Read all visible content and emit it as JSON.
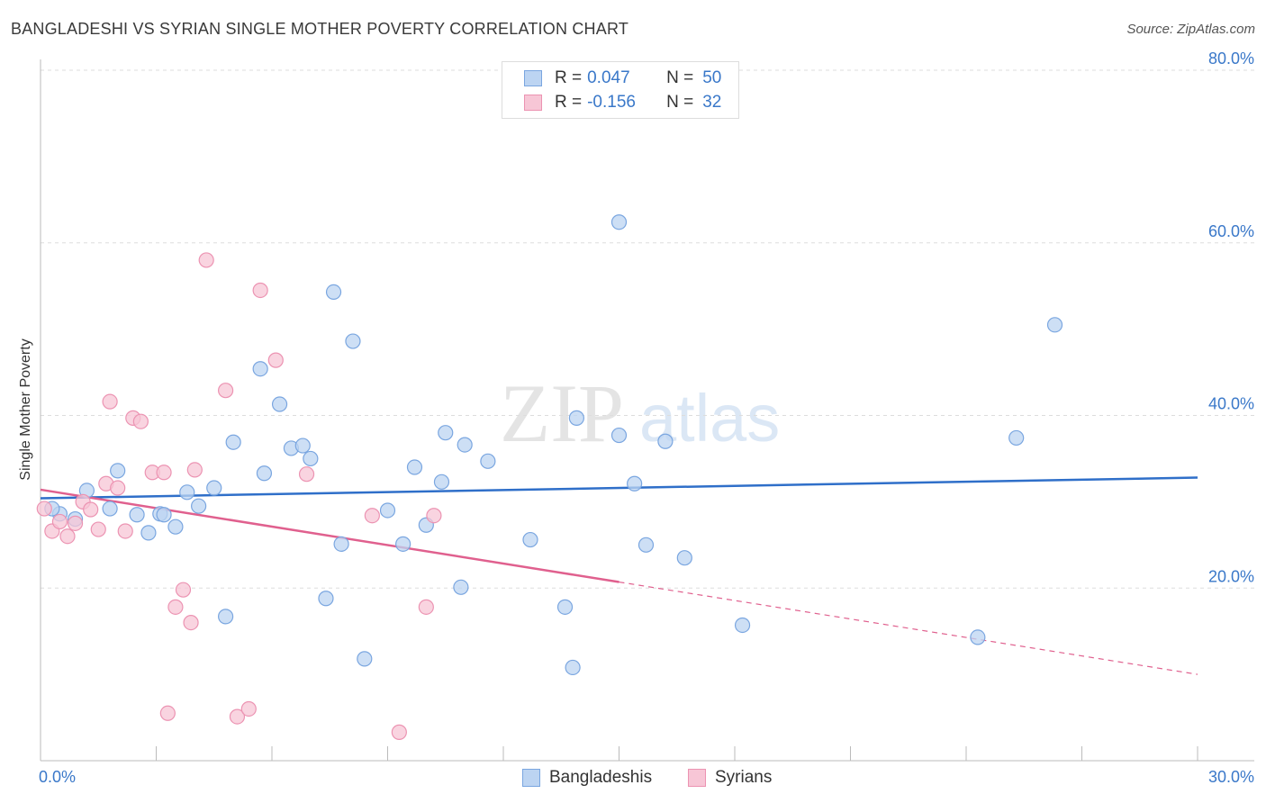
{
  "header": {
    "title": "BANGLADESHI VS SYRIAN SINGLE MOTHER POVERTY CORRELATION CHART",
    "source": "Source: ZipAtlas.com"
  },
  "legend": {
    "rows": [
      {
        "r_label": "R =",
        "r_value": "0.047",
        "n_label": "N =",
        "n_value": "50"
      },
      {
        "r_label": "R =",
        "r_value": "-0.156",
        "n_label": "N =",
        "n_value": "32"
      }
    ]
  },
  "watermark": {
    "zip": "ZIP",
    "atlas": "atlas"
  },
  "bottom_legend": {
    "bangladeshis": "Bangladeshis",
    "syrians": "Syrians"
  },
  "colors": {
    "blue_fill": "#bcd4f2",
    "blue_stroke": "#7aa6e0",
    "blue_line": "#2f6fc9",
    "pink_fill": "#f7c6d6",
    "pink_stroke": "#ec93b2",
    "pink_line": "#e0608e",
    "axis_text": "#3a78c9",
    "grid": "#dddddd"
  },
  "chart_data": {
    "type": "scatter",
    "title": "BANGLADESHI VS SYRIAN SINGLE MOTHER POVERTY CORRELATION CHART",
    "xlabel": "",
    "ylabel": "Single Mother Poverty",
    "xlim": [
      0,
      30
    ],
    "ylim": [
      0,
      80
    ],
    "x_tick_labels": [
      "0.0%",
      "30.0%"
    ],
    "y_ticks": [
      20,
      40,
      60,
      80
    ],
    "y_tick_labels": [
      "20.0%",
      "40.0%",
      "60.0%",
      "80.0%"
    ],
    "grid": true,
    "legend_position": "top-center",
    "series": [
      {
        "name": "Bangladeshis",
        "r": 0.047,
        "n": 50,
        "trend": {
          "x": [
            0,
            30
          ],
          "y": [
            30.4,
            32.8
          ],
          "dashed_from": null
        },
        "points": [
          [
            0.5,
            28.6
          ],
          [
            0.9,
            28.0
          ],
          [
            1.2,
            31.3
          ],
          [
            1.8,
            29.2
          ],
          [
            2.0,
            33.6
          ],
          [
            2.5,
            28.5
          ],
          [
            2.8,
            26.4
          ],
          [
            3.1,
            28.6
          ],
          [
            3.5,
            27.1
          ],
          [
            3.8,
            31.1
          ],
          [
            4.1,
            29.5
          ],
          [
            4.5,
            31.6
          ],
          [
            4.8,
            16.7
          ],
          [
            5.0,
            36.9
          ],
          [
            5.7,
            45.4
          ],
          [
            5.8,
            33.3
          ],
          [
            6.2,
            41.3
          ],
          [
            6.5,
            36.2
          ],
          [
            6.8,
            36.5
          ],
          [
            7.0,
            35.0
          ],
          [
            7.4,
            18.8
          ],
          [
            7.6,
            54.3
          ],
          [
            7.8,
            25.1
          ],
          [
            8.1,
            48.6
          ],
          [
            8.4,
            11.8
          ],
          [
            9.0,
            29.0
          ],
          [
            9.4,
            25.1
          ],
          [
            9.7,
            34.0
          ],
          [
            10.0,
            27.3
          ],
          [
            10.4,
            32.3
          ],
          [
            10.5,
            38.0
          ],
          [
            10.9,
            20.1
          ],
          [
            11.0,
            36.6
          ],
          [
            11.6,
            34.7
          ],
          [
            12.7,
            25.6
          ],
          [
            13.6,
            17.8
          ],
          [
            13.8,
            10.8
          ],
          [
            13.9,
            39.7
          ],
          [
            15.0,
            62.4
          ],
          [
            15.0,
            37.7
          ],
          [
            15.4,
            32.1
          ],
          [
            15.7,
            25.0
          ],
          [
            16.2,
            37.0
          ],
          [
            16.7,
            23.5
          ],
          [
            18.2,
            15.7
          ],
          [
            24.3,
            14.3
          ],
          [
            25.3,
            37.4
          ],
          [
            26.3,
            50.5
          ],
          [
            0.3,
            29.2
          ],
          [
            3.2,
            28.5
          ]
        ]
      },
      {
        "name": "Syrians",
        "r": -0.156,
        "n": 32,
        "trend": {
          "x": [
            0,
            30
          ],
          "y": [
            31.4,
            10.0
          ],
          "dashed_from": 15.0
        },
        "points": [
          [
            0.1,
            29.2
          ],
          [
            0.3,
            26.6
          ],
          [
            0.5,
            27.7
          ],
          [
            0.7,
            26.0
          ],
          [
            0.9,
            27.5
          ],
          [
            1.1,
            30.0
          ],
          [
            1.3,
            29.1
          ],
          [
            1.5,
            26.8
          ],
          [
            1.7,
            32.1
          ],
          [
            1.8,
            41.6
          ],
          [
            2.0,
            31.6
          ],
          [
            2.2,
            26.6
          ],
          [
            2.4,
            39.7
          ],
          [
            2.6,
            39.3
          ],
          [
            2.9,
            33.4
          ],
          [
            3.2,
            33.4
          ],
          [
            3.3,
            5.5
          ],
          [
            3.5,
            17.8
          ],
          [
            3.7,
            19.8
          ],
          [
            3.9,
            16.0
          ],
          [
            4.0,
            33.7
          ],
          [
            4.3,
            58.0
          ],
          [
            4.8,
            42.9
          ],
          [
            5.1,
            5.1
          ],
          [
            5.4,
            6.0
          ],
          [
            5.7,
            54.5
          ],
          [
            6.1,
            46.4
          ],
          [
            6.9,
            33.2
          ],
          [
            8.6,
            28.4
          ],
          [
            9.3,
            3.3
          ],
          [
            10.0,
            17.8
          ],
          [
            10.2,
            28.4
          ]
        ]
      }
    ]
  }
}
